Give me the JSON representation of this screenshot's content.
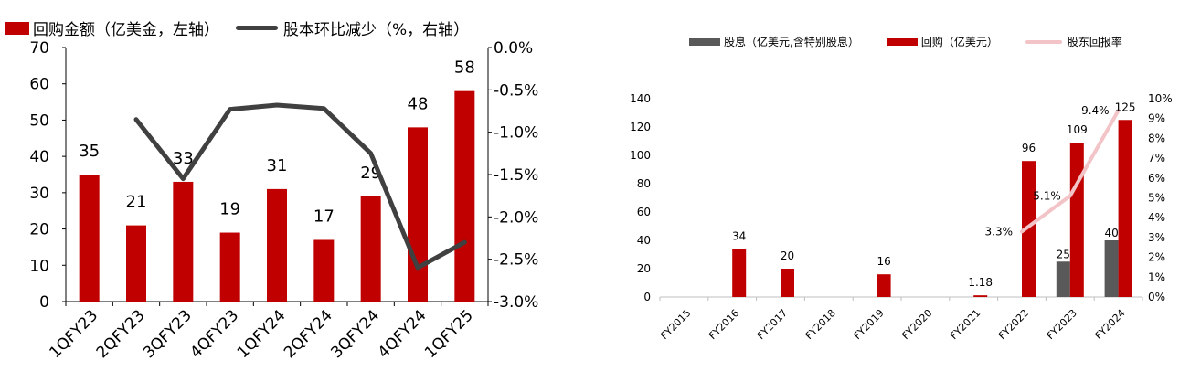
{
  "chart_data": [
    {
      "type": "bar+line",
      "legend": [
        {
          "label": "回购金额（亿美金，左轴）",
          "kind": "bar",
          "color": "#c00000"
        },
        {
          "label": "股本环比减少（%，右轴）",
          "kind": "line",
          "color": "#404040"
        }
      ],
      "categories": [
        "1QFY23",
        "2QFY23",
        "3QFY23",
        "4QFY23",
        "1QFY24",
        "2QFY24",
        "3QFY24",
        "4QFY24",
        "1QFY25"
      ],
      "bars": {
        "values": [
          35,
          21,
          33,
          19,
          31,
          17,
          29,
          48,
          58
        ],
        "labels": [
          "35",
          "21",
          "33",
          "19",
          "31",
          "17",
          "29",
          "48",
          "58"
        ]
      },
      "line": {
        "values": [
          null,
          -0.85,
          -1.55,
          -0.73,
          -0.68,
          -0.72,
          -1.25,
          -2.6,
          -2.3
        ]
      },
      "left_axis": {
        "min": 0,
        "max": 70,
        "step": 10,
        "ticks": [
          "0",
          "10",
          "20",
          "30",
          "40",
          "50",
          "60",
          "70"
        ]
      },
      "right_axis": {
        "min": -3.0,
        "max": 0.0,
        "step": 0.5,
        "ticks": [
          "-3.0%",
          "-2.5%",
          "-2.0%",
          "-1.5%",
          "-1.0%",
          "-0.5%",
          "0.0%"
        ]
      }
    },
    {
      "type": "bar+line",
      "legend": [
        {
          "label": "股息（亿美元,含特别股息）",
          "kind": "bar",
          "color": "#595959"
        },
        {
          "label": "回购（亿美元）",
          "kind": "bar",
          "color": "#c00000"
        },
        {
          "label": "股东回报率",
          "kind": "line",
          "color": "#f2c4c8"
        }
      ],
      "categories": [
        "FY2015",
        "FY2016",
        "FY2017",
        "FY2018",
        "FY2019",
        "FY2020",
        "FY2021",
        "FY2022",
        "FY2023",
        "FY2024"
      ],
      "dividends": {
        "values": [
          null,
          null,
          null,
          null,
          null,
          null,
          null,
          null,
          25,
          40
        ],
        "labels": [
          "",
          "",
          "",
          "",
          "",
          "",
          "",
          "",
          "25",
          "40"
        ]
      },
      "buybacks": {
        "values": [
          null,
          34,
          20,
          null,
          16,
          null,
          1.18,
          96,
          109,
          125
        ],
        "labels": [
          "",
          "34",
          "20",
          "",
          "16",
          "",
          "1.18",
          "96",
          "109",
          "125"
        ]
      },
      "yield_line": {
        "values": [
          null,
          null,
          null,
          null,
          null,
          null,
          null,
          3.3,
          5.1,
          9.4
        ],
        "labels": [
          "",
          "",
          "",
          "",
          "",
          "",
          "",
          "3.3%",
          "5.1%",
          "9.4%"
        ]
      },
      "left_axis": {
        "min": 0,
        "max": 140,
        "step": 20,
        "ticks": [
          "0",
          "20",
          "40",
          "60",
          "80",
          "100",
          "120",
          "140"
        ]
      },
      "right_axis": {
        "min": 0,
        "max": 10,
        "step": 1,
        "ticks": [
          "0%",
          "1%",
          "2%",
          "3%",
          "4%",
          "5%",
          "6%",
          "7%",
          "8%",
          "9%",
          "10%"
        ]
      }
    }
  ]
}
